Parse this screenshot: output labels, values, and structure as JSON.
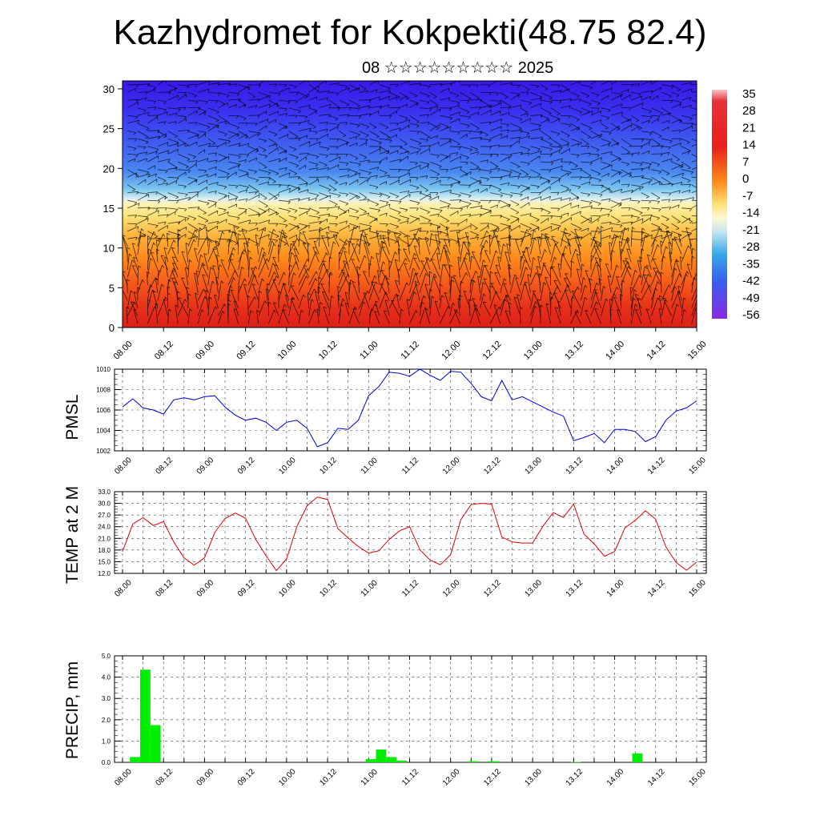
{
  "page": {
    "title": "Kazhydromet for Kokpekti(48.75 82.4)",
    "subtitle": "08 ☆☆☆☆☆☆☆☆☆ 2025"
  },
  "chart_data": [
    {
      "type": "heatmap",
      "ylim": [
        0,
        31
      ],
      "yticks": [
        0,
        5,
        10,
        15,
        20,
        25,
        30
      ],
      "xticks": [
        "08.00",
        "08.12",
        "09.00",
        "09.12",
        "10.00",
        "10.12",
        "11.00",
        "11.12",
        "12.00",
        "12.12",
        "13.00",
        "13.12",
        "14.00",
        "14.12",
        "15.00"
      ],
      "colorbar_labels": [
        "35",
        "28",
        "21",
        "14",
        "7",
        "0",
        "-7",
        "-14",
        "-21",
        "-28",
        "-35",
        "-42",
        "-49",
        "-56"
      ],
      "description_levels_value": [
        35,
        28,
        21,
        14,
        7,
        0,
        -7,
        -14,
        -21,
        -28,
        -35,
        -42,
        -49,
        -56
      ],
      "colors": {
        "hot": "#e0201a",
        "warm": "#ff9a1a",
        "mild": "#fde277",
        "cool": "#7ec8f0",
        "cold": "#3a6af0",
        "very_cold": "#3a18e8"
      }
    },
    {
      "type": "line",
      "ylabel": "PMSL",
      "ylim": [
        1002,
        1010
      ],
      "yticks": [
        "1002",
        "1004",
        "1006",
        "1008",
        "1010"
      ],
      "xticks": [
        "08.00",
        "08.12",
        "09.00",
        "09.12",
        "10.00",
        "10.12",
        "11.00",
        "11.12",
        "12.00",
        "12.12",
        "13.00",
        "13.12",
        "14.00",
        "14.12",
        "15.00"
      ],
      "series": [
        {
          "color": "#0000e0",
          "values": [
            1006.3,
            1007.1,
            1006.2,
            1006.0,
            1005.6,
            1007.0,
            1007.2,
            1007.0,
            1007.3,
            1007.4,
            1006.3,
            1005.5,
            1005.0,
            1005.2,
            1004.8,
            1004.0,
            1004.8,
            1005.0,
            1004.2,
            1002.4,
            1002.8,
            1004.2,
            1004.1,
            1005.0,
            1007.4,
            1008.3,
            1009.7,
            1009.6,
            1009.3,
            1010.0,
            1009.4,
            1008.9,
            1009.8,
            1009.7,
            1008.6,
            1007.3,
            1006.9,
            1008.9,
            1007.0,
            1007.3,
            1006.8,
            1006.3,
            1005.8,
            1005.4,
            1003.0,
            1003.3,
            1003.7,
            1002.8,
            1004.1,
            1004.1,
            1003.9,
            1002.9,
            1003.4,
            1005.0,
            1005.9,
            1006.2,
            1006.9
          ]
        }
      ]
    },
    {
      "type": "line",
      "ylabel": "TEMP at 2 M",
      "ylim": [
        12,
        33
      ],
      "yticks": [
        "12.0",
        "15.0",
        "18.0",
        "21.0",
        "24.0",
        "27.0",
        "30.0",
        "33.0"
      ],
      "xticks": [
        "08.00",
        "08.12",
        "09.00",
        "09.12",
        "10.00",
        "10.12",
        "11.00",
        "11.12",
        "12.00",
        "12.12",
        "13.00",
        "13.12",
        "14.00",
        "14.12",
        "15.00"
      ],
      "series": [
        {
          "color": "#e00000",
          "values": [
            17.6,
            24.7,
            26.3,
            24.3,
            25.3,
            20.1,
            16.0,
            14.1,
            16.0,
            22.5,
            26.1,
            27.5,
            26.2,
            20.7,
            16.5,
            12.7,
            15.7,
            24.0,
            29.4,
            31.6,
            31.0,
            23.5,
            21.1,
            18.9,
            17.2,
            17.8,
            20.7,
            22.9,
            24.0,
            18.1,
            15.4,
            14.2,
            16.8,
            25.8,
            29.7,
            30.0,
            29.8,
            21.3,
            20.1,
            19.8,
            19.8,
            24.1,
            27.6,
            26.4,
            29.8,
            22.1,
            19.6,
            16.4,
            17.6,
            23.7,
            25.6,
            28.1,
            25.9,
            18.8,
            14.8,
            12.8,
            14.9
          ]
        }
      ]
    },
    {
      "type": "bar",
      "ylabel": "PRECIP, mm",
      "ylim": [
        0,
        5
      ],
      "yticks": [
        "0.0",
        "1.0",
        "2.0",
        "3.0",
        "4.0",
        "5.0"
      ],
      "xticks": [
        "08.00",
        "08.12",
        "09.00",
        "09.12",
        "10.00",
        "10.12",
        "11.00",
        "11.12",
        "12.00",
        "12.12",
        "13.00",
        "13.12",
        "14.00",
        "14.12",
        "15.00"
      ],
      "series": [
        {
          "color": "#00ee00",
          "values": [
            0,
            0.25,
            4.35,
            1.75,
            0,
            0,
            0,
            0,
            0,
            0,
            0,
            0,
            0,
            0,
            0,
            0,
            0,
            0,
            0,
            0,
            0,
            0,
            0,
            0,
            0.15,
            0.6,
            0.25,
            0.08,
            0,
            0,
            0,
            0,
            0,
            0,
            0.05,
            0,
            0.05,
            0,
            0,
            0,
            0,
            0,
            0,
            0,
            0.02,
            0,
            0,
            0,
            0,
            0,
            0.42,
            0,
            0,
            0,
            0,
            0
          ]
        }
      ]
    }
  ]
}
